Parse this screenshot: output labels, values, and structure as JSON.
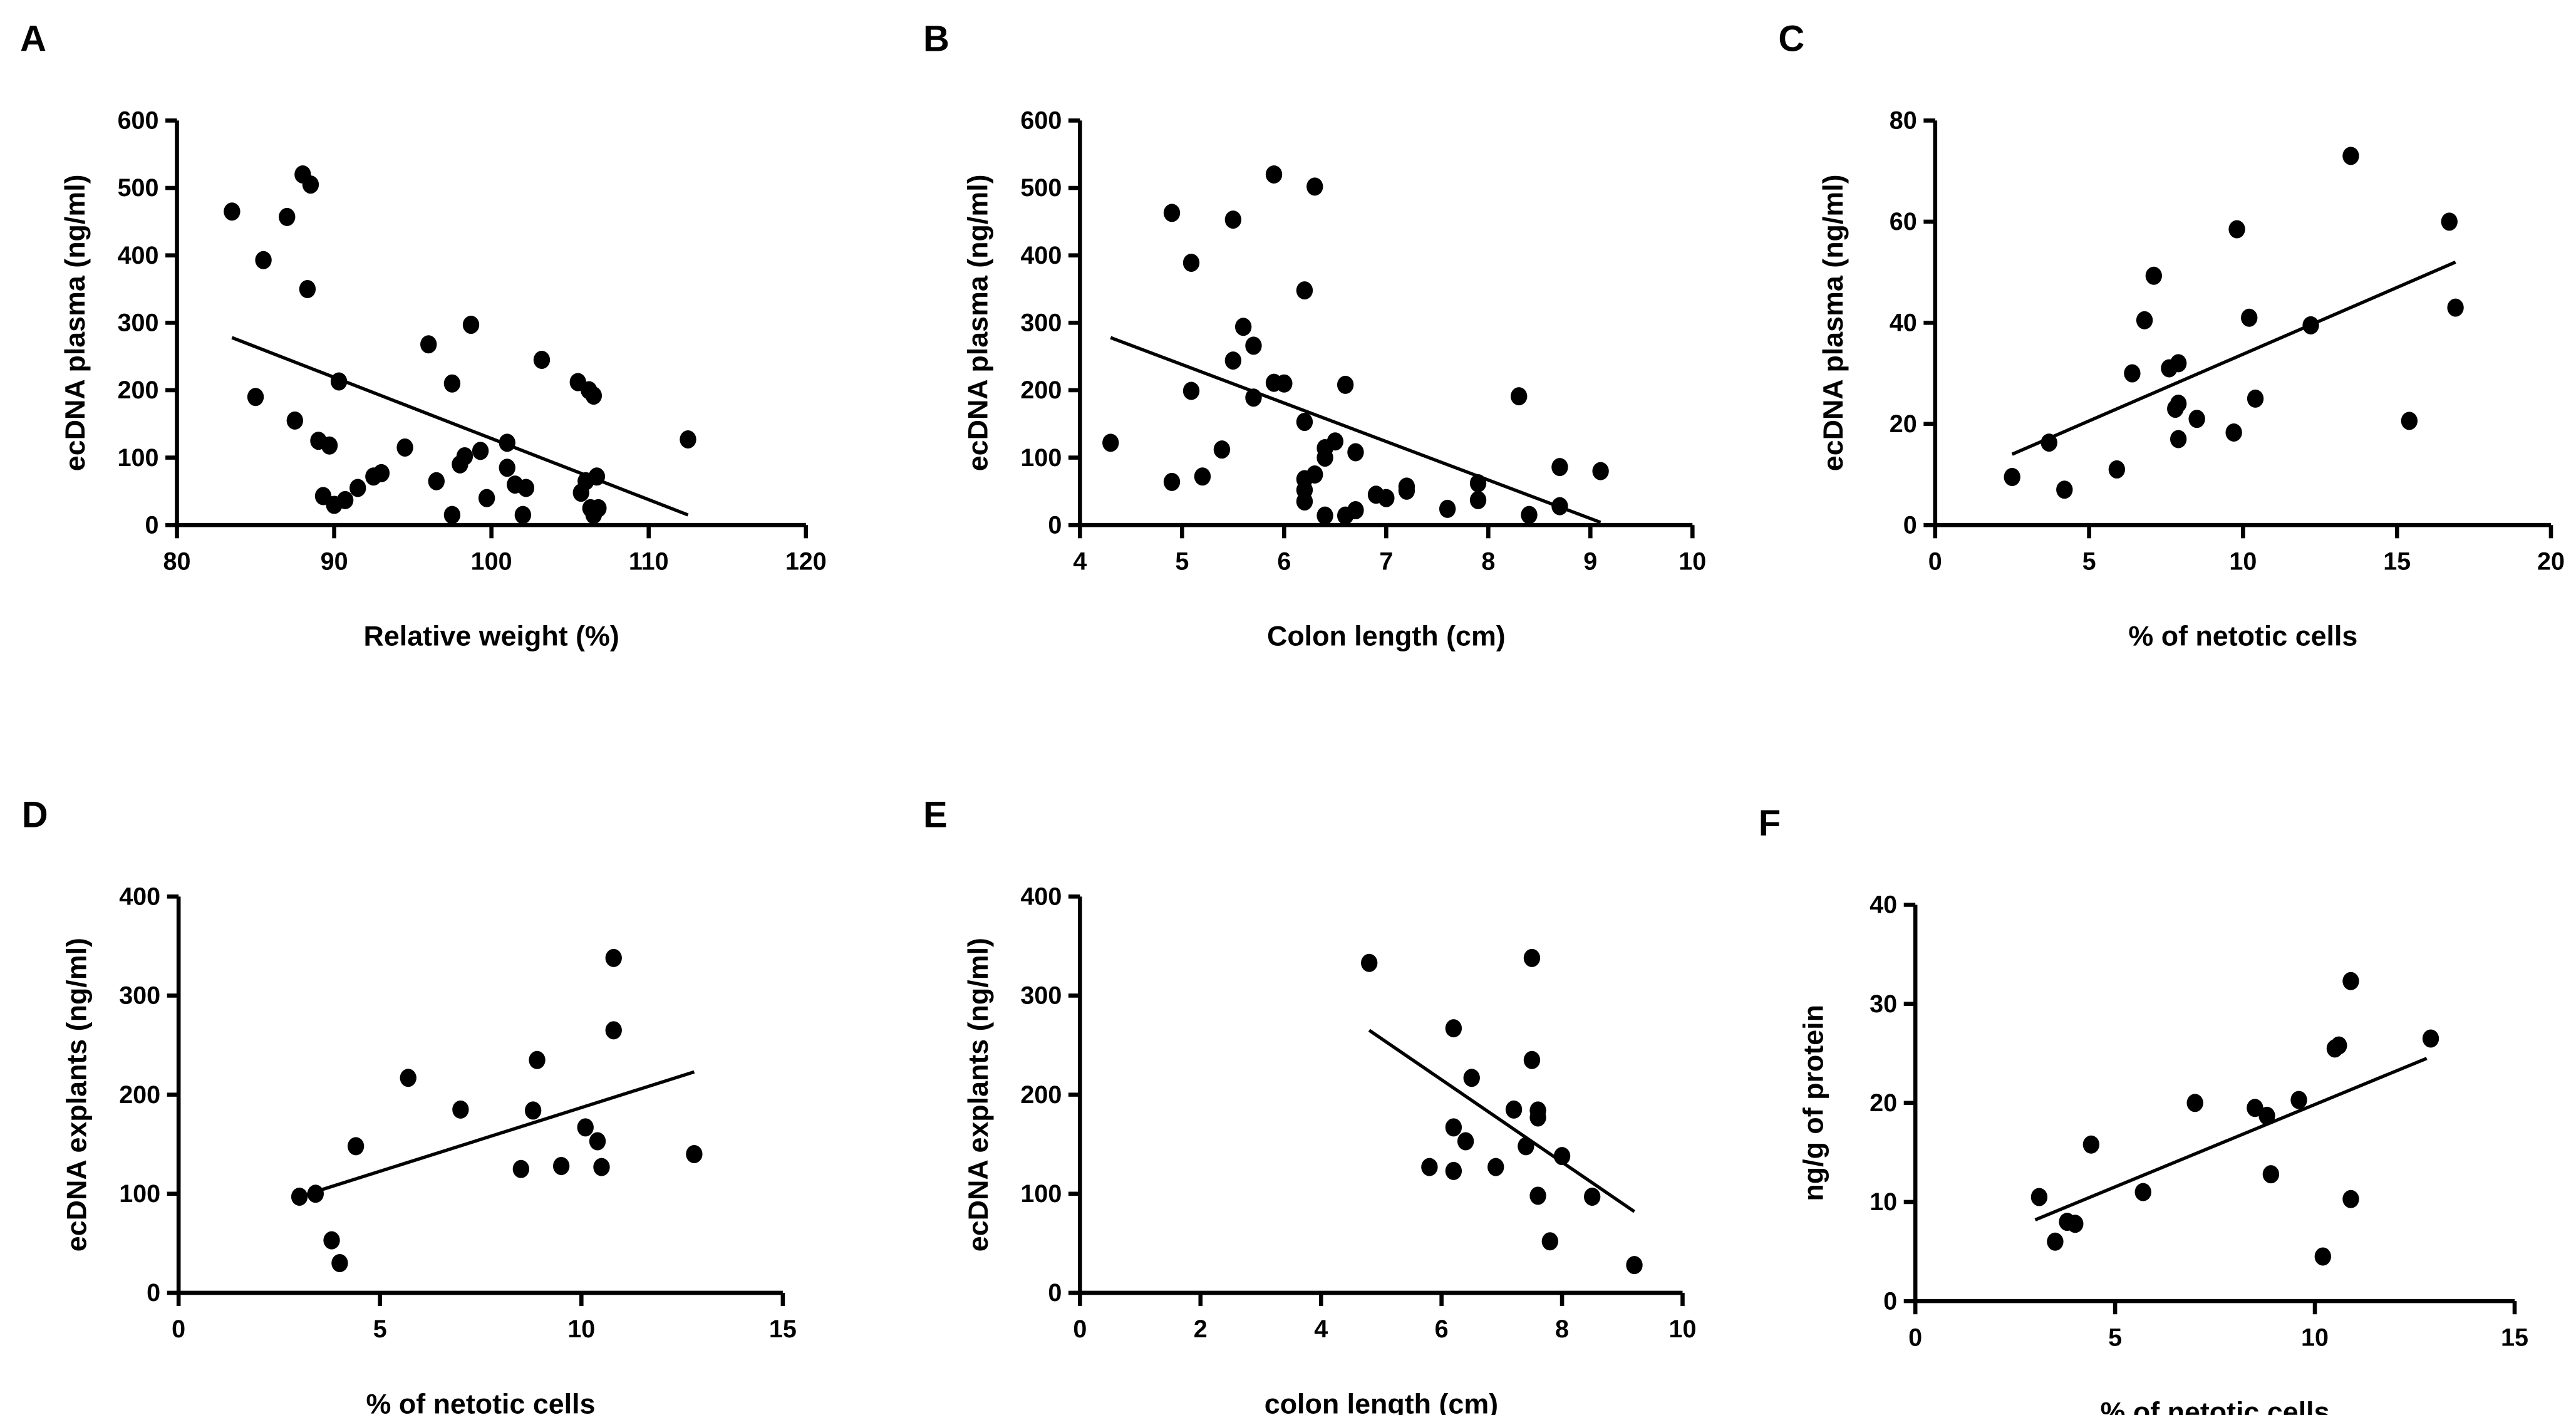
{
  "chart_data": [
    {
      "panel": "A",
      "type": "scatter",
      "xlabel": "Relative weight (%)",
      "ylabel": "ecDNA plasma (ng/ml)",
      "xlim": [
        80,
        120
      ],
      "ylim": [
        0,
        600
      ],
      "xticks": [
        80,
        90,
        100,
        110,
        120
      ],
      "yticks": [
        0,
        100,
        200,
        300,
        400,
        500,
        600
      ],
      "points": [
        [
          83.5,
          465
        ],
        [
          85,
          190
        ],
        [
          85.5,
          393
        ],
        [
          87,
          457
        ],
        [
          87.5,
          155
        ],
        [
          88,
          520
        ],
        [
          88.5,
          505
        ],
        [
          88.3,
          350
        ],
        [
          89,
          125
        ],
        [
          89.3,
          43
        ],
        [
          89.7,
          118
        ],
        [
          90,
          30
        ],
        [
          90.3,
          213
        ],
        [
          90.7,
          37
        ],
        [
          91.5,
          55
        ],
        [
          92.5,
          72
        ],
        [
          93,
          77
        ],
        [
          94.5,
          115
        ],
        [
          96,
          268
        ],
        [
          96.5,
          65
        ],
        [
          97.5,
          210
        ],
        [
          97.5,
          15
        ],
        [
          98,
          90
        ],
        [
          98.3,
          102
        ],
        [
          98.7,
          297
        ],
        [
          99.3,
          110
        ],
        [
          99.7,
          40
        ],
        [
          101,
          122
        ],
        [
          101,
          85
        ],
        [
          101.5,
          60
        ],
        [
          102,
          15
        ],
        [
          102.2,
          55
        ],
        [
          103.2,
          245
        ],
        [
          105.5,
          212
        ],
        [
          105.7,
          48
        ],
        [
          106,
          65
        ],
        [
          106.2,
          200
        ],
        [
          106.5,
          192
        ],
        [
          106.3,
          25
        ],
        [
          106.5,
          15
        ],
        [
          106.7,
          72
        ],
        [
          106.8,
          25
        ],
        [
          112.5,
          127
        ]
      ],
      "fit": [
        [
          83.5,
          278
        ],
        [
          112.5,
          15
        ]
      ]
    },
    {
      "panel": "B",
      "type": "scatter",
      "xlabel": "Colon length (cm)",
      "ylabel": "ecDNA plasma (ng/ml)",
      "xlim": [
        4,
        10
      ],
      "ylim": [
        0,
        600
      ],
      "xticks": [
        4,
        5,
        6,
        7,
        8,
        9,
        10
      ],
      "yticks": [
        0,
        100,
        200,
        300,
        400,
        500,
        600
      ],
      "points": [
        [
          4.3,
          122
        ],
        [
          4.9,
          463
        ],
        [
          5.09,
          389
        ],
        [
          4.9,
          64
        ],
        [
          5.09,
          199
        ],
        [
          5.2,
          72
        ],
        [
          5.39,
          112
        ],
        [
          5.5,
          453
        ],
        [
          5.5,
          244
        ],
        [
          5.6,
          294
        ],
        [
          5.7,
          266
        ],
        [
          5.7,
          189
        ],
        [
          5.9,
          520
        ],
        [
          5.9,
          211
        ],
        [
          6.0,
          210
        ],
        [
          6.2,
          348
        ],
        [
          6.2,
          153
        ],
        [
          6.3,
          502
        ],
        [
          6.2,
          68
        ],
        [
          6.2,
          52
        ],
        [
          6.2,
          35
        ],
        [
          6.3,
          75
        ],
        [
          6.4,
          114
        ],
        [
          6.4,
          100
        ],
        [
          6.5,
          124
        ],
        [
          6.4,
          14
        ],
        [
          6.6,
          208
        ],
        [
          6.6,
          14
        ],
        [
          6.7,
          108
        ],
        [
          6.7,
          22
        ],
        [
          6.9,
          45
        ],
        [
          7.0,
          40
        ],
        [
          7.2,
          57
        ],
        [
          7.2,
          51
        ],
        [
          7.6,
          24
        ],
        [
          7.9,
          62
        ],
        [
          7.9,
          37
        ],
        [
          8.3,
          191
        ],
        [
          8.4,
          15
        ],
        [
          8.7,
          86
        ],
        [
          8.7,
          28
        ],
        [
          9.1,
          80
        ]
      ],
      "fit": [
        [
          4.3,
          278
        ],
        [
          9.1,
          4
        ]
      ]
    },
    {
      "panel": "C",
      "type": "scatter",
      "xlabel": "% of netotic cells",
      "ylabel": "ecDNA plasma (ng/ml)",
      "xlim": [
        0,
        20
      ],
      "ylim": [
        0,
        80
      ],
      "xticks": [
        0,
        5,
        10,
        15,
        20
      ],
      "yticks": [
        0,
        20,
        40,
        60,
        80
      ],
      "points": [
        [
          2.5,
          9.5
        ],
        [
          3.7,
          16.3
        ],
        [
          4.2,
          7
        ],
        [
          5.9,
          11
        ],
        [
          6.4,
          30
        ],
        [
          6.8,
          40.5
        ],
        [
          7.1,
          49.3
        ],
        [
          7.6,
          31
        ],
        [
          7.9,
          32
        ],
        [
          7.8,
          23
        ],
        [
          7.9,
          24
        ],
        [
          7.9,
          17
        ],
        [
          8.5,
          21
        ],
        [
          9.7,
          18.3
        ],
        [
          9.8,
          58.5
        ],
        [
          10.2,
          41
        ],
        [
          10.4,
          25
        ],
        [
          12.2,
          39.5
        ],
        [
          13.5,
          73
        ],
        [
          15.4,
          20.6
        ],
        [
          16.7,
          60
        ],
        [
          16.9,
          43
        ]
      ],
      "fit": [
        [
          2.5,
          14
        ],
        [
          16.9,
          52
        ]
      ]
    },
    {
      "panel": "D",
      "type": "scatter",
      "xlabel": "% of netotic cells",
      "ylabel": "ecDNA explants (ng/ml)",
      "xlim": [
        0,
        15
      ],
      "ylim": [
        0,
        400
      ],
      "xticks": [
        0,
        5,
        10,
        15
      ],
      "yticks": [
        0,
        100,
        200,
        300,
        400
      ],
      "points": [
        [
          3.0,
          97
        ],
        [
          3.4,
          100
        ],
        [
          3.8,
          53
        ],
        [
          4.0,
          30
        ],
        [
          4.4,
          148
        ],
        [
          5.7,
          217
        ],
        [
          7.0,
          185
        ],
        [
          8.5,
          125
        ],
        [
          8.8,
          184
        ],
        [
          8.9,
          235
        ],
        [
          9.5,
          128
        ],
        [
          10.1,
          167
        ],
        [
          10.4,
          153
        ],
        [
          10.5,
          127
        ],
        [
          10.8,
          265
        ],
        [
          10.8,
          338
        ],
        [
          12.8,
          140
        ]
      ],
      "fit": [
        [
          3.0,
          97
        ],
        [
          12.8,
          223
        ]
      ]
    },
    {
      "panel": "E",
      "type": "scatter",
      "xlabel": "colon length (cm)",
      "ylabel": "ecDNA explants (ng/ml)",
      "xlim": [
        0,
        10
      ],
      "ylim": [
        0,
        400
      ],
      "xticks": [
        0,
        2,
        4,
        6,
        8,
        10
      ],
      "yticks": [
        0,
        100,
        200,
        300,
        400
      ],
      "points": [
        [
          4.8,
          333
        ],
        [
          6.2,
          267
        ],
        [
          5.8,
          127
        ],
        [
          6.2,
          167
        ],
        [
          6.2,
          123
        ],
        [
          6.4,
          153
        ],
        [
          6.5,
          217
        ],
        [
          6.9,
          127
        ],
        [
          7.2,
          185
        ],
        [
          7.4,
          148
        ],
        [
          7.5,
          338
        ],
        [
          7.5,
          235
        ],
        [
          7.6,
          184
        ],
        [
          7.6,
          177
        ],
        [
          7.6,
          98
        ],
        [
          8.0,
          138
        ],
        [
          7.8,
          52
        ],
        [
          8.5,
          97
        ],
        [
          9.2,
          28
        ]
      ],
      "fit": [
        [
          4.8,
          265
        ],
        [
          9.2,
          82
        ]
      ]
    },
    {
      "panel": "F",
      "type": "scatter",
      "xlabel": "% of netotic cells",
      "ylabel": "ng/g of protein",
      "xlim": [
        0,
        15
      ],
      "ylim": [
        0,
        40
      ],
      "xticks": [
        0,
        5,
        10,
        15
      ],
      "yticks": [
        0,
        10,
        20,
        30,
        40
      ],
      "points": [
        [
          3.1,
          10.5
        ],
        [
          3.5,
          6
        ],
        [
          3.8,
          8
        ],
        [
          4.0,
          7.8
        ],
        [
          4.4,
          15.8
        ],
        [
          5.7,
          11
        ],
        [
          7.0,
          20
        ],
        [
          8.5,
          19.5
        ],
        [
          8.8,
          18.7
        ],
        [
          8.9,
          12.8
        ],
        [
          9.6,
          20.3
        ],
        [
          10.2,
          4.5
        ],
        [
          10.5,
          25.5
        ],
        [
          10.6,
          25.8
        ],
        [
          10.9,
          32.3
        ],
        [
          10.9,
          10.3
        ],
        [
          12.9,
          26.5
        ]
      ],
      "fit": [
        [
          3.0,
          8.2
        ],
        [
          12.8,
          24.5
        ]
      ]
    }
  ]
}
